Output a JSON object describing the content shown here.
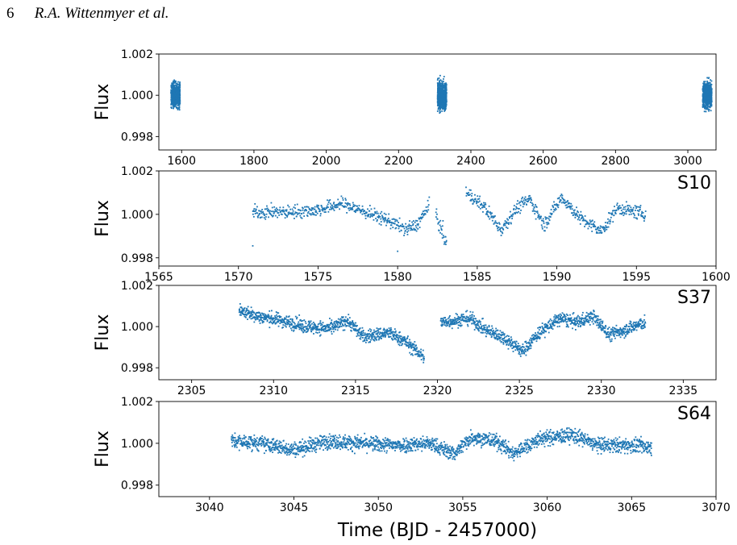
{
  "header": {
    "page_number": "6",
    "authors": "R.A. Wittenmyer et al."
  },
  "colors": {
    "points": "#1f77b4",
    "axes": "#000000"
  },
  "chart_data": [
    {
      "type": "scatter",
      "ylabel": "Flux",
      "sector_label": "",
      "xlabel": "",
      "xlim": [
        1537,
        3078
      ],
      "ylim": [
        0.99735,
        1.002
      ],
      "xticks": [
        1600,
        1800,
        2000,
        2200,
        2400,
        2600,
        2800,
        3000
      ],
      "yticks": [
        0.998,
        1.0,
        1.002
      ],
      "ytick_labels": [
        "0.998",
        "1.000",
        "1.002"
      ],
      "segments": [
        {
          "x_start": 1570.9,
          "x_end": 1595.6,
          "spread": 0.00055
        },
        {
          "x_start": 2307.9,
          "x_end": 2332.7,
          "spread": 0.00065
        },
        {
          "x_start": 3041.3,
          "x_end": 3066.2,
          "spread": 0.0006
        }
      ]
    },
    {
      "type": "scatter",
      "ylabel": "Flux",
      "sector_label": "S10",
      "xlabel": "",
      "xlim": [
        1565,
        1600
      ],
      "ylim": [
        0.99762,
        1.002
      ],
      "xticks": [
        1565,
        1570,
        1575,
        1580,
        1585,
        1590,
        1595,
        1600
      ],
      "yticks": [
        0.998,
        1.0,
        1.002
      ],
      "ytick_labels": [
        "0.998",
        "1.000",
        "1.002"
      ],
      "segments": [
        {
          "x_start": 1570.9,
          "x_end": 1582.0,
          "spread": 0.0003
        },
        {
          "x_start": 1582.4,
          "x_end": 1583.1,
          "spread": 0.0004
        },
        {
          "x_start": 1584.3,
          "x_end": 1595.6,
          "spread": 0.0003
        }
      ],
      "trend": [
        [
          1570.9,
          1.0001
        ],
        [
          1573.0,
          1.0001
        ],
        [
          1575.0,
          1.0002
        ],
        [
          1576.5,
          1.0005
        ],
        [
          1578.0,
          1.0001
        ],
        [
          1579.5,
          0.9997
        ],
        [
          1580.5,
          0.9993
        ],
        [
          1581.2,
          0.9995
        ],
        [
          1582.0,
          1.0004
        ],
        [
          1582.4,
          1.0
        ],
        [
          1583.1,
          0.9986
        ],
        [
          1584.3,
          1.001
        ],
        [
          1585.5,
          1.0003
        ],
        [
          1586.5,
          0.9993
        ],
        [
          1587.5,
          1.0003
        ],
        [
          1588.3,
          1.0007
        ],
        [
          1589.2,
          0.9995
        ],
        [
          1590.3,
          1.0008
        ],
        [
          1591.5,
          0.9998
        ],
        [
          1592.8,
          0.9992
        ],
        [
          1593.8,
          1.0003
        ],
        [
          1595.6,
          1.0
        ]
      ],
      "rare_low": [
        [
          1570.9,
          0.99855
        ],
        [
          1580.0,
          0.9983
        ]
      ]
    },
    {
      "type": "scatter",
      "ylabel": "Flux",
      "sector_label": "S37",
      "xlabel": "",
      "xlim": [
        2303,
        2337
      ],
      "ylim": [
        0.99742,
        1.002
      ],
      "xticks": [
        2305,
        2310,
        2315,
        2320,
        2325,
        2330,
        2335
      ],
      "yticks": [
        0.998,
        1.0,
        1.002
      ],
      "ytick_labels": [
        "0.998",
        "1.000",
        "1.002"
      ],
      "segments": [
        {
          "x_start": 2307.9,
          "x_end": 2319.2,
          "spread": 0.00032
        },
        {
          "x_start": 2320.2,
          "x_end": 2332.7,
          "spread": 0.00032
        }
      ],
      "trend": [
        [
          2307.9,
          1.0008
        ],
        [
          2309.0,
          1.0005
        ],
        [
          2310.5,
          1.0003
        ],
        [
          2312.0,
          1.0
        ],
        [
          2313.5,
          0.9999
        ],
        [
          2314.5,
          1.0003
        ],
        [
          2315.5,
          0.9995
        ],
        [
          2317.0,
          0.9997
        ],
        [
          2318.0,
          0.9993
        ],
        [
          2319.2,
          0.9985
        ],
        [
          2320.2,
          1.0002
        ],
        [
          2322.0,
          1.0004
        ],
        [
          2323.0,
          0.9998
        ],
        [
          2324.0,
          0.9995
        ],
        [
          2325.2,
          0.9988
        ],
        [
          2326.2,
          0.9997
        ],
        [
          2327.5,
          1.0004
        ],
        [
          2328.5,
          1.0002
        ],
        [
          2329.5,
          1.0005
        ],
        [
          2330.5,
          0.9996
        ],
        [
          2332.7,
          1.0002
        ]
      ]
    },
    {
      "type": "scatter",
      "ylabel": "Flux",
      "sector_label": "S64",
      "xlabel": "Time (BJD - 2457000)",
      "xlim": [
        3037,
        3070
      ],
      "ylim": [
        0.99745,
        1.002
      ],
      "xticks": [
        3040,
        3045,
        3050,
        3055,
        3060,
        3065,
        3070
      ],
      "yticks": [
        0.998,
        1.0,
        1.002
      ],
      "ytick_labels": [
        "0.998",
        "1.000",
        "1.002"
      ],
      "segments": [
        {
          "x_start": 3041.3,
          "x_end": 3066.2,
          "spread": 0.00035
        }
      ],
      "trend": [
        [
          3041.3,
          1.0001
        ],
        [
          3043.0,
          1.0
        ],
        [
          3045.0,
          0.9997
        ],
        [
          3047.0,
          1.0001
        ],
        [
          3049.0,
          1.0
        ],
        [
          3051.0,
          0.9999
        ],
        [
          3053.0,
          1.0
        ],
        [
          3054.5,
          0.9995
        ],
        [
          3055.5,
          1.0003
        ],
        [
          3057.0,
          1.0001
        ],
        [
          3058.0,
          0.9995
        ],
        [
          3059.5,
          1.0002
        ],
        [
          3061.5,
          1.0004
        ],
        [
          3063.0,
          0.9999
        ],
        [
          3065.0,
          0.9999
        ],
        [
          3066.2,
          0.9998
        ]
      ]
    }
  ]
}
